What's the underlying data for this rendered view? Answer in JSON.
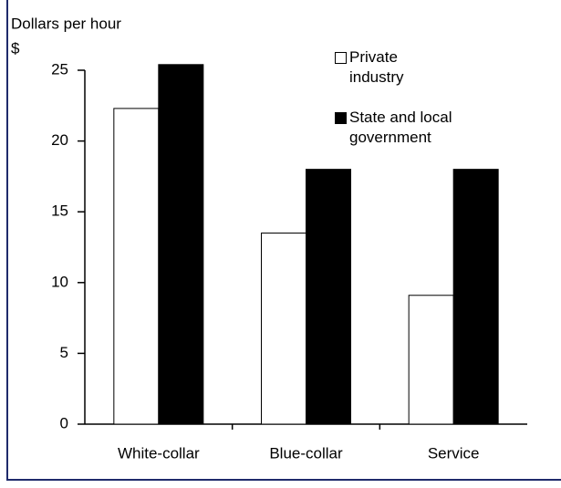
{
  "chart_data": {
    "type": "bar",
    "y_label": "Dollars per hour",
    "y_unit": "$",
    "categories": [
      "White-collar",
      "Blue-collar",
      "Service"
    ],
    "series": [
      {
        "name": "Private industry",
        "color": "#ffffff",
        "values": [
          22.3,
          13.5,
          9.1
        ]
      },
      {
        "name": "State and local government",
        "color": "#000000",
        "values": [
          25.4,
          18.0,
          18.0
        ]
      }
    ],
    "ylim": [
      0,
      25
    ],
    "yticks": [
      0,
      5,
      10,
      15,
      20,
      25
    ],
    "grid": false
  }
}
